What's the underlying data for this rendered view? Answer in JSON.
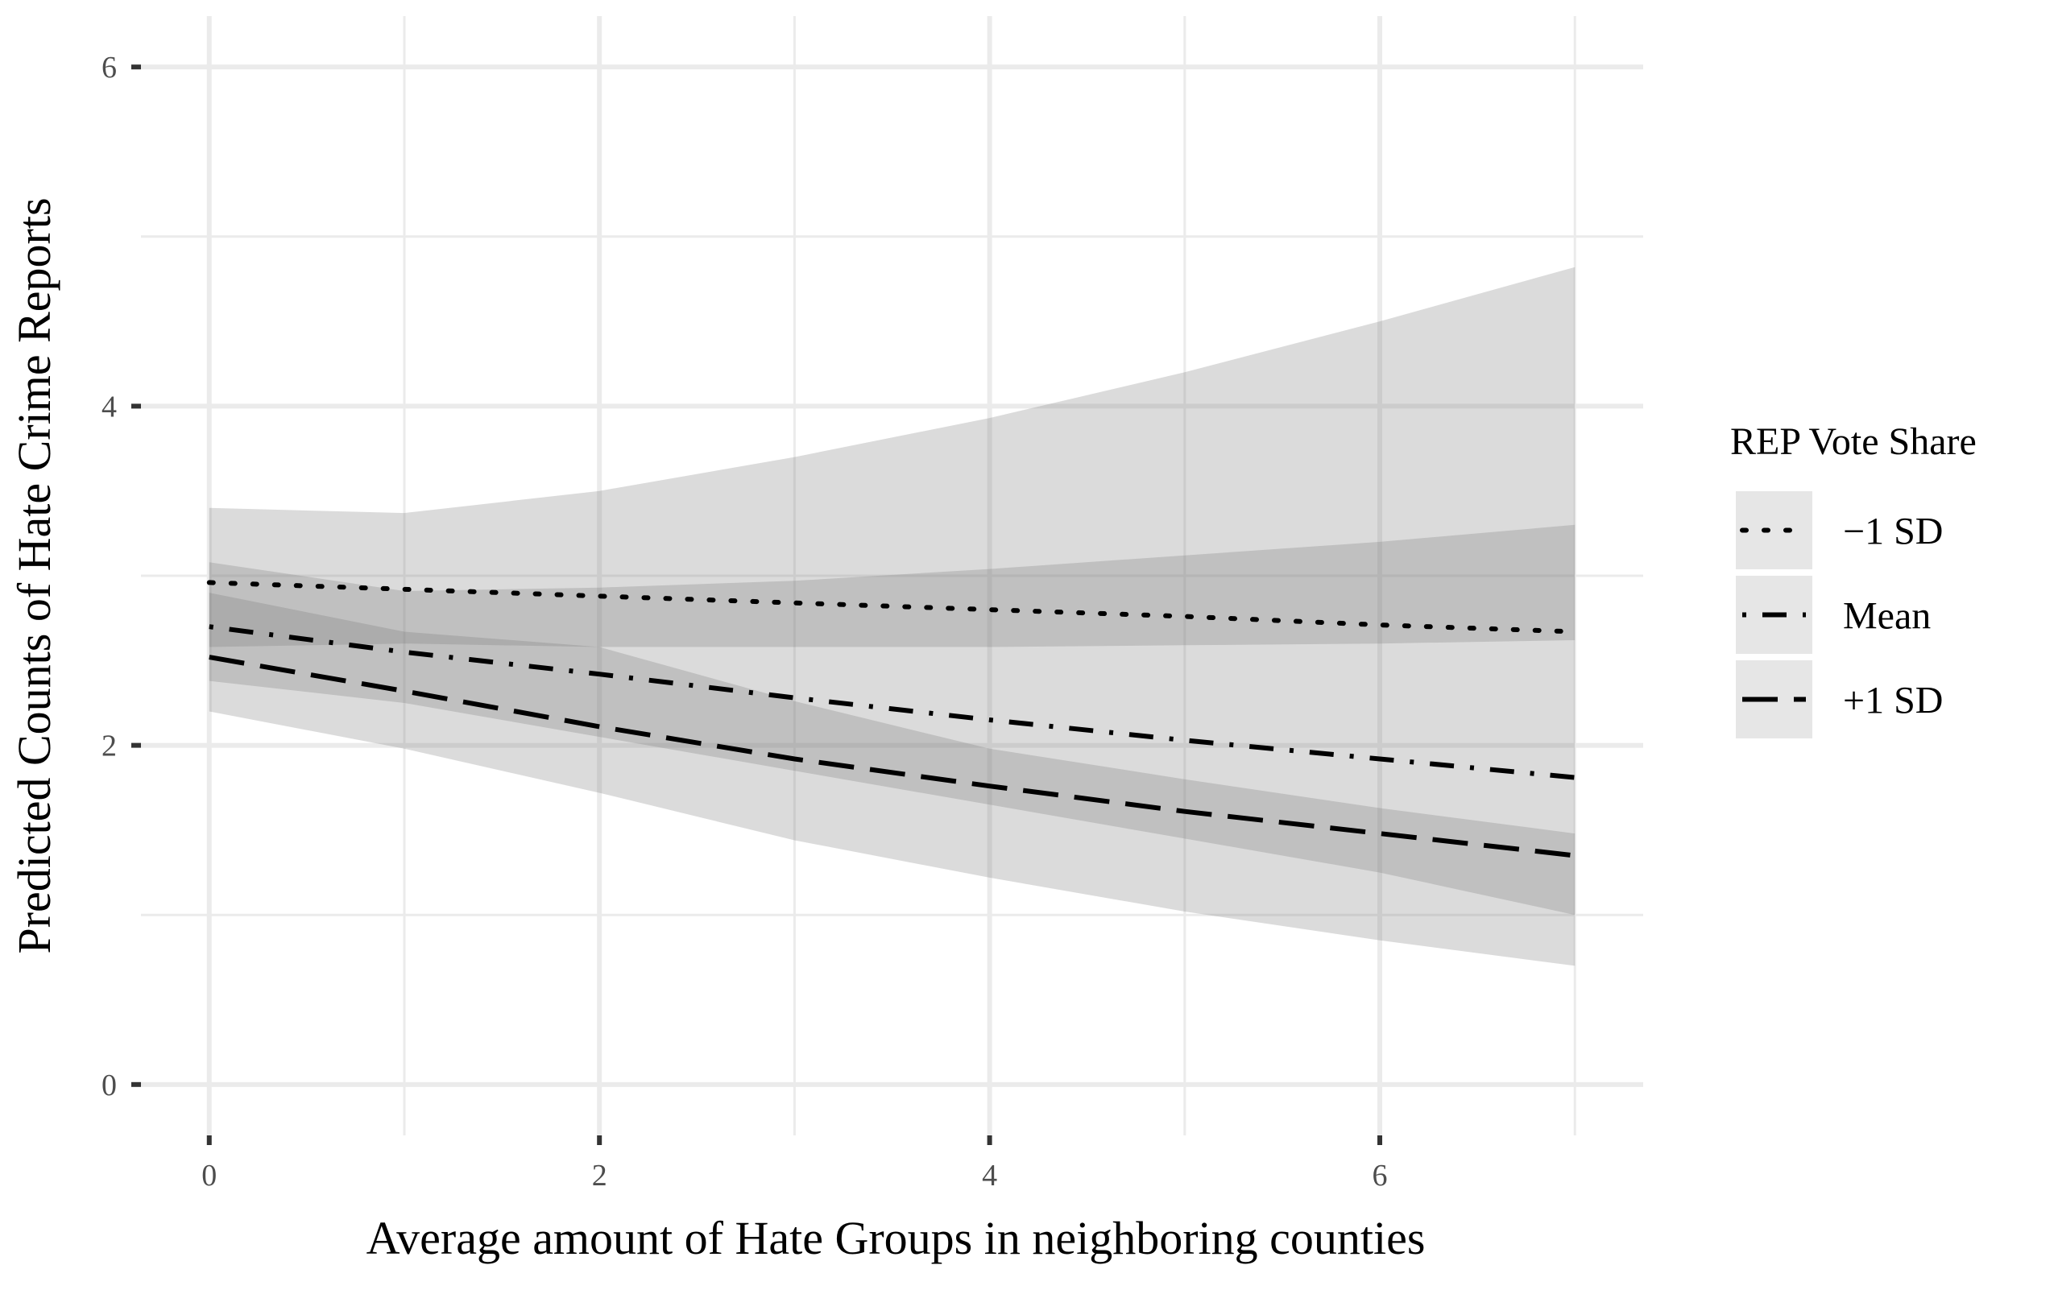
{
  "chart_data": {
    "type": "line",
    "title": "",
    "xlabel": "Average amount of Hate Groups in neighboring counties",
    "ylabel": "Predicted Counts of Hate Crime Reports",
    "xlim": [
      -0.35,
      7.35
    ],
    "ylim": [
      -0.3,
      6.3
    ],
    "x_ticks": [
      0,
      2,
      4,
      6
    ],
    "x_tick_labels": [
      "0",
      "2",
      "4",
      "6"
    ],
    "y_ticks": [
      0,
      2,
      4,
      6
    ],
    "y_tick_labels": [
      "0",
      "2",
      "4",
      "6"
    ],
    "grid": true,
    "legend": {
      "title": "REP Vote Share",
      "position": "right"
    },
    "x": [
      0,
      1,
      2,
      3,
      4,
      5,
      6,
      7
    ],
    "series": [
      {
        "name": "−1 SD",
        "linetype": "dotted",
        "values": [
          2.96,
          2.92,
          2.88,
          2.84,
          2.8,
          2.76,
          2.71,
          2.67
        ],
        "lower": [
          2.58,
          2.6,
          2.58,
          2.58,
          2.58,
          2.59,
          2.6,
          2.62
        ],
        "upper": [
          3.4,
          3.37,
          3.5,
          3.7,
          3.93,
          4.2,
          4.5,
          4.82
        ]
      },
      {
        "name": "Mean",
        "linetype": "dotdash",
        "values": [
          2.7,
          2.55,
          2.42,
          2.28,
          2.15,
          2.03,
          1.92,
          1.81
        ],
        "lower": [
          2.38,
          2.25,
          2.05,
          1.85,
          1.65,
          1.45,
          1.25,
          1.0
        ],
        "upper": [
          3.08,
          2.91,
          2.93,
          2.97,
          3.04,
          3.12,
          3.2,
          3.3
        ]
      },
      {
        "name": "+1 SD",
        "linetype": "longdash",
        "values": [
          2.52,
          2.32,
          2.11,
          1.92,
          1.76,
          1.61,
          1.48,
          1.35
        ],
        "lower": [
          2.2,
          1.98,
          1.72,
          1.44,
          1.22,
          1.02,
          0.85,
          0.7
        ],
        "upper": [
          2.9,
          2.67,
          2.58,
          2.26,
          1.98,
          1.8,
          1.63,
          1.48
        ]
      }
    ],
    "colors": {
      "band": "#6e6e6e",
      "panel_background": "#ffffff",
      "grid": "#ebebeb",
      "line": "#000000",
      "legend_key_background": "#e6e6e6"
    }
  }
}
